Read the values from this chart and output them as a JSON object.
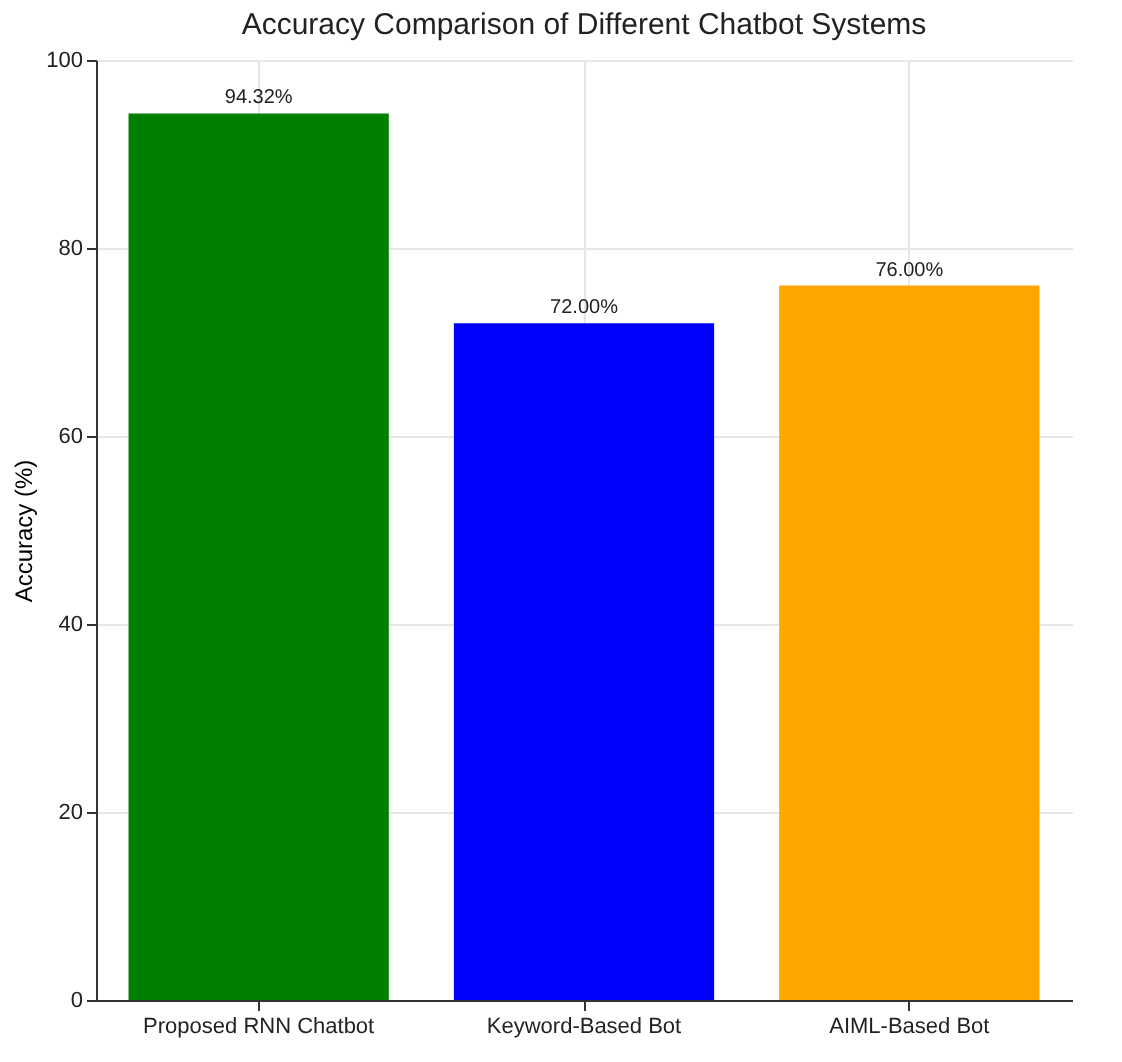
{
  "chart_data": {
    "type": "bar",
    "title": "Accuracy Comparison of Different Chatbot Systems",
    "ylabel": "Accuracy (%)",
    "categories": [
      "Proposed RNN Chatbot",
      "Keyword-Based Bot",
      "AIML-Based Bot"
    ],
    "values": [
      94.32,
      72.0,
      76.0
    ],
    "colors": [
      "#008000",
      "#0000ff",
      "#ffa500"
    ],
    "value_labels": [
      "94.32%",
      "72.00%",
      "76.00%"
    ],
    "ylim": [
      0,
      100
    ],
    "yticks": [
      0,
      20,
      40,
      60,
      80,
      100
    ],
    "grid": true
  }
}
